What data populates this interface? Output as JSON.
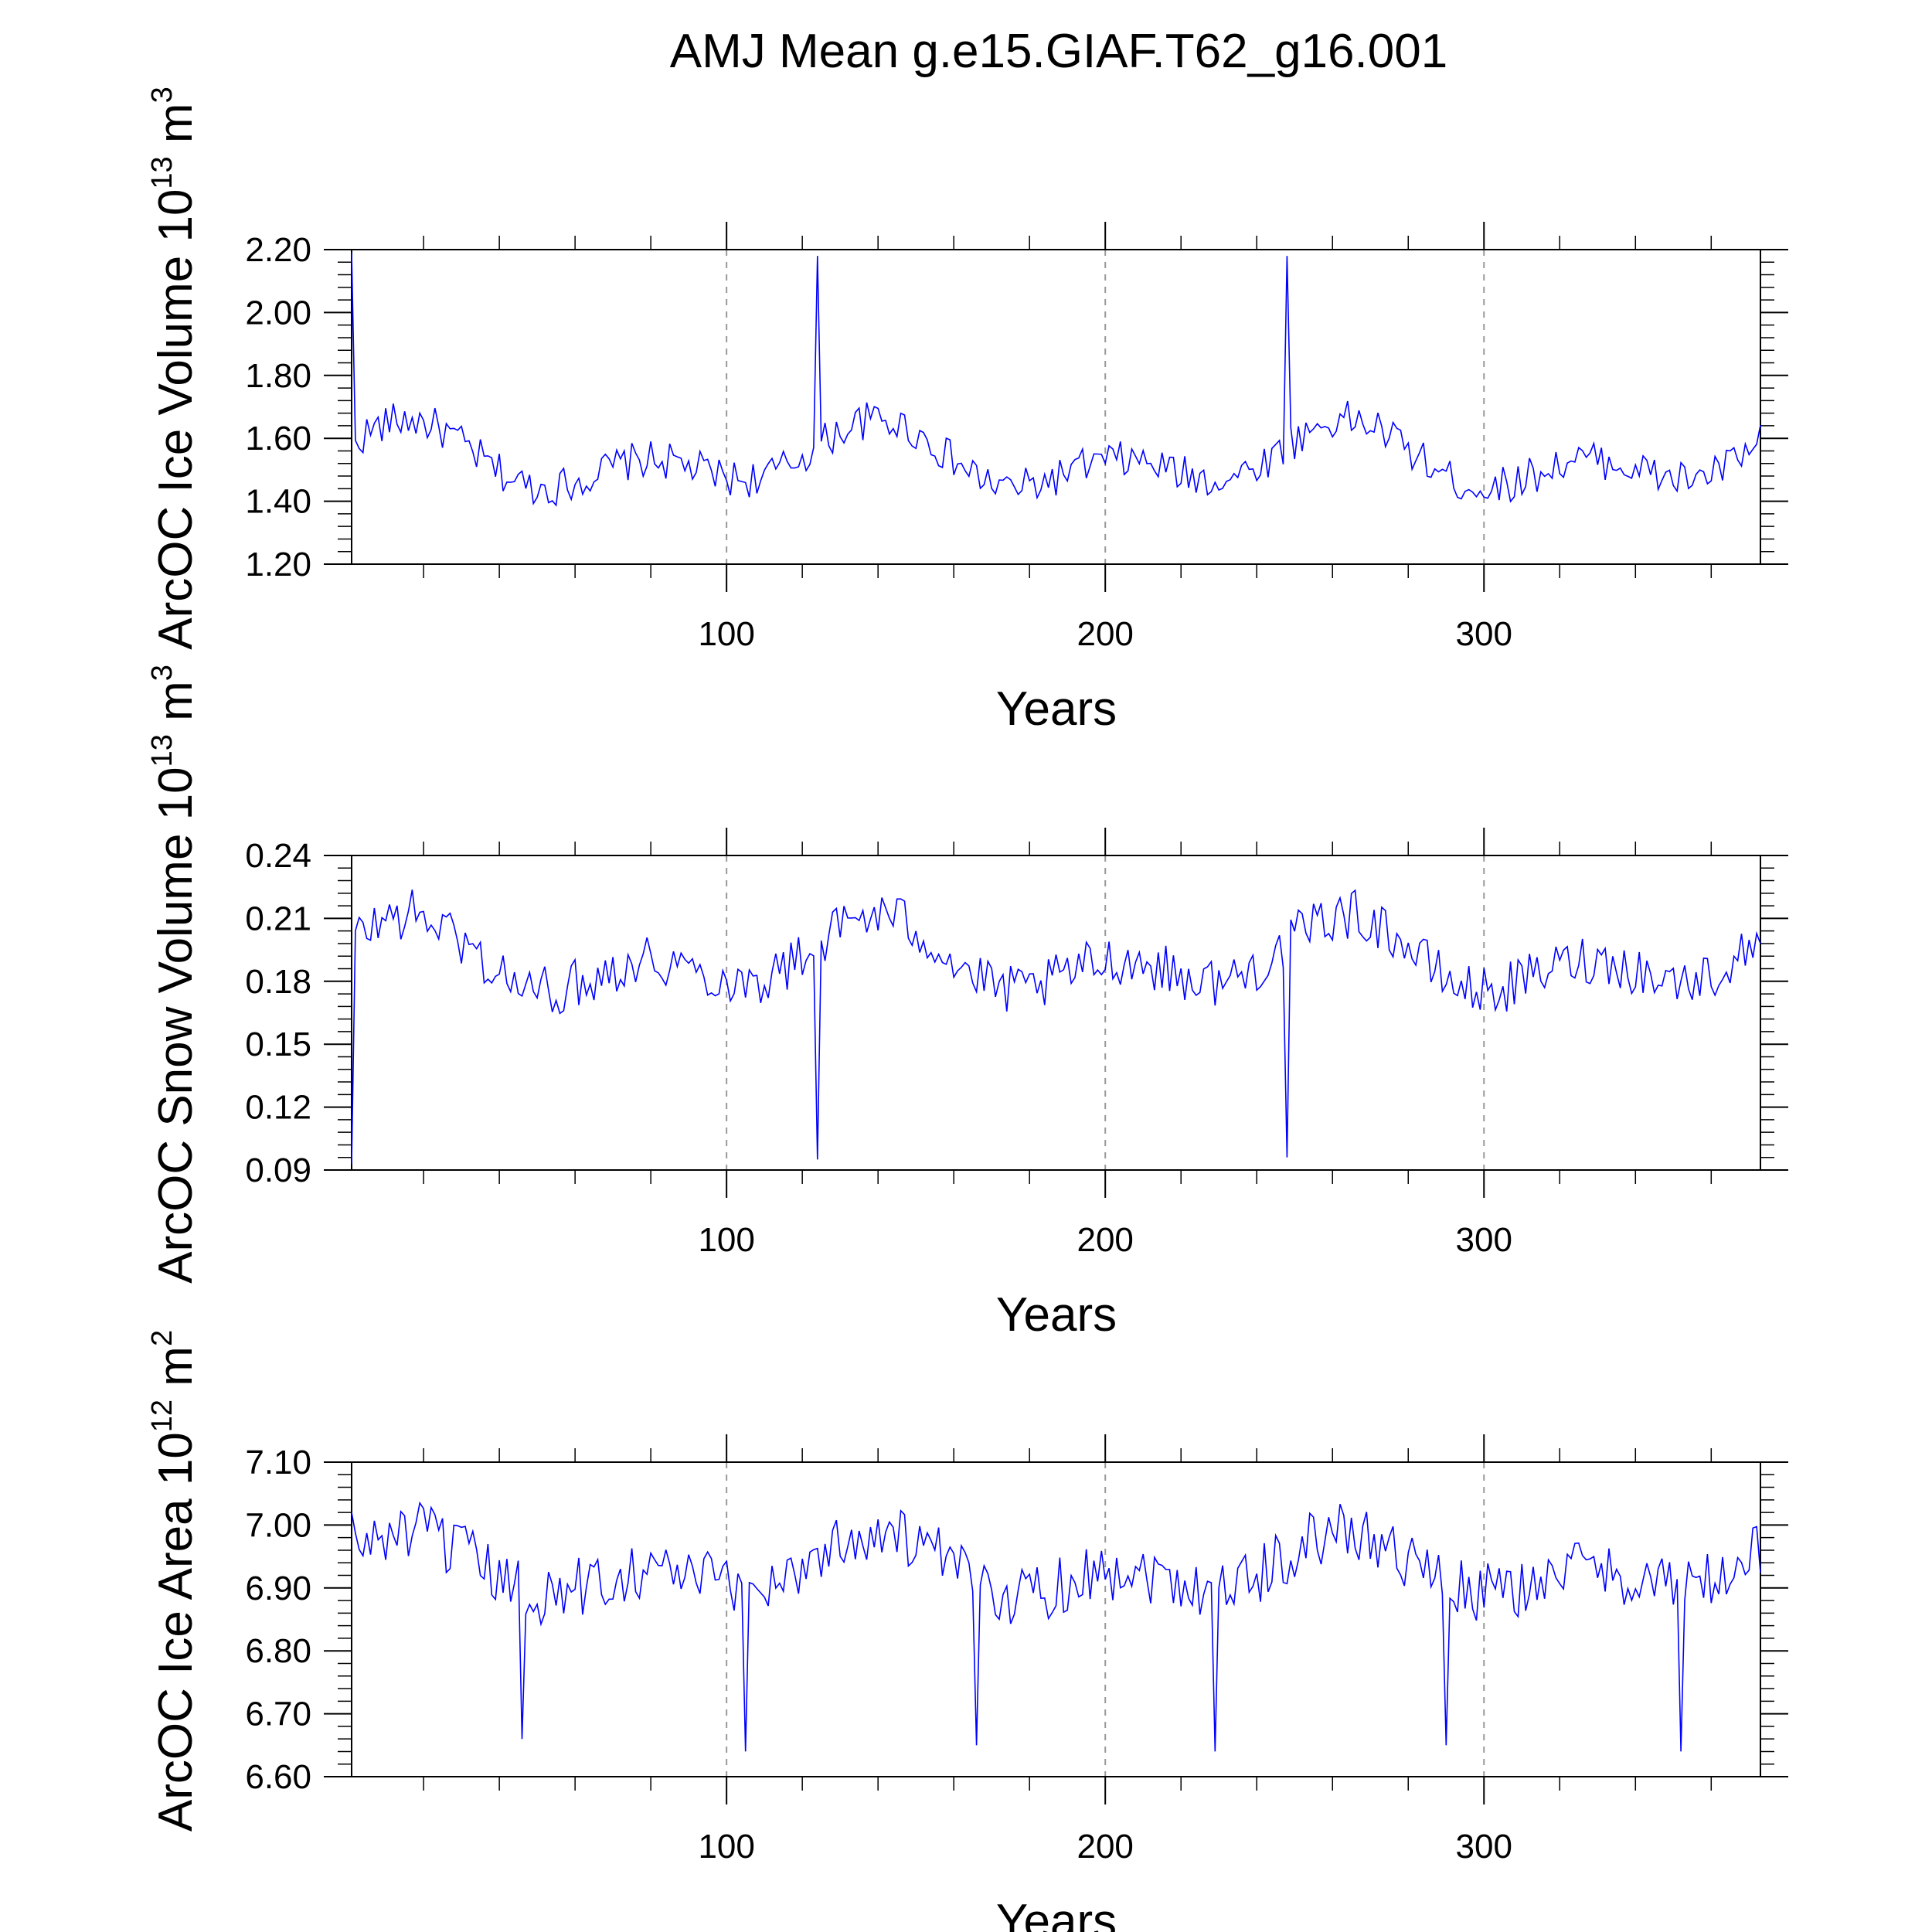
{
  "title": "AMJ Mean g.e15.GIAF.T62_g16.001",
  "line_color": "#0000ff",
  "chart_data": [
    {
      "type": "line",
      "ylabel_main": "ArcOC Ice Volume 10",
      "ylabel_sup": "13",
      "ylabel_unit": " m",
      "ylabel_unit_sup": "3",
      "xlabel": "Years",
      "xlim": [
        1,
        373
      ],
      "ylim": [
        1.2,
        2.2
      ],
      "yticks": [
        1.2,
        1.4,
        1.6,
        1.8,
        2.0,
        2.2
      ],
      "ytick_labels": [
        "1.20",
        "1.40",
        "1.60",
        "1.80",
        "2.00",
        "2.20"
      ],
      "xticks": [
        100,
        200,
        300
      ],
      "xtick_labels": [
        "100",
        "200",
        "300"
      ],
      "gen": {
        "cycle": 124,
        "base": 1.53,
        "amp": 0.13,
        "noise": 0.06,
        "start": 2.19,
        "spikes": [
          [
            124,
            2.18
          ],
          [
            248,
            2.18
          ]
        ]
      }
    },
    {
      "type": "line",
      "ylabel_main": "ArcOC Snow Volume 10",
      "ylabel_sup": "13",
      "ylabel_unit": " m",
      "ylabel_unit_sup": "3",
      "xlabel": "Years",
      "xlim": [
        1,
        373
      ],
      "ylim": [
        0.09,
        0.24
      ],
      "yticks": [
        0.09,
        0.12,
        0.15,
        0.18,
        0.21,
        0.24
      ],
      "ytick_labels": [
        "0.09",
        "0.12",
        "0.15",
        "0.18",
        "0.21",
        "0.24"
      ],
      "xticks": [
        100,
        200,
        300
      ],
      "xtick_labels": [
        "100",
        "200",
        "300"
      ],
      "gen": {
        "cycle": 124,
        "base": 0.19,
        "amp": 0.022,
        "noise": 0.012,
        "start": 0.093,
        "spikes": [
          [
            124,
            0.095
          ],
          [
            248,
            0.096
          ]
        ]
      }
    },
    {
      "type": "line",
      "ylabel_main": "ArcOC Ice Area 10",
      "ylabel_sup": "12",
      "ylabel_unit": " m",
      "ylabel_unit_sup": "2",
      "xlabel": "Years",
      "xlim": [
        1,
        373
      ],
      "ylim": [
        6.6,
        7.1
      ],
      "yticks": [
        6.6,
        6.7,
        6.8,
        6.9,
        7.0,
        7.1
      ],
      "ytick_labels": [
        "6.60",
        "6.70",
        "6.80",
        "6.90",
        "7.00",
        "7.10"
      ],
      "xticks": [
        100,
        200,
        300
      ],
      "xtick_labels": [
        "100",
        "200",
        "300"
      ],
      "gen": {
        "cycle": 124,
        "base": 6.93,
        "amp": 0.06,
        "noise": 0.05,
        "start": 7.02,
        "spikes": [
          [
            46,
            6.66
          ],
          [
            105,
            6.64
          ],
          [
            166,
            6.65
          ],
          [
            229,
            6.64
          ],
          [
            290,
            6.65
          ],
          [
            352,
            6.64
          ]
        ]
      }
    }
  ]
}
